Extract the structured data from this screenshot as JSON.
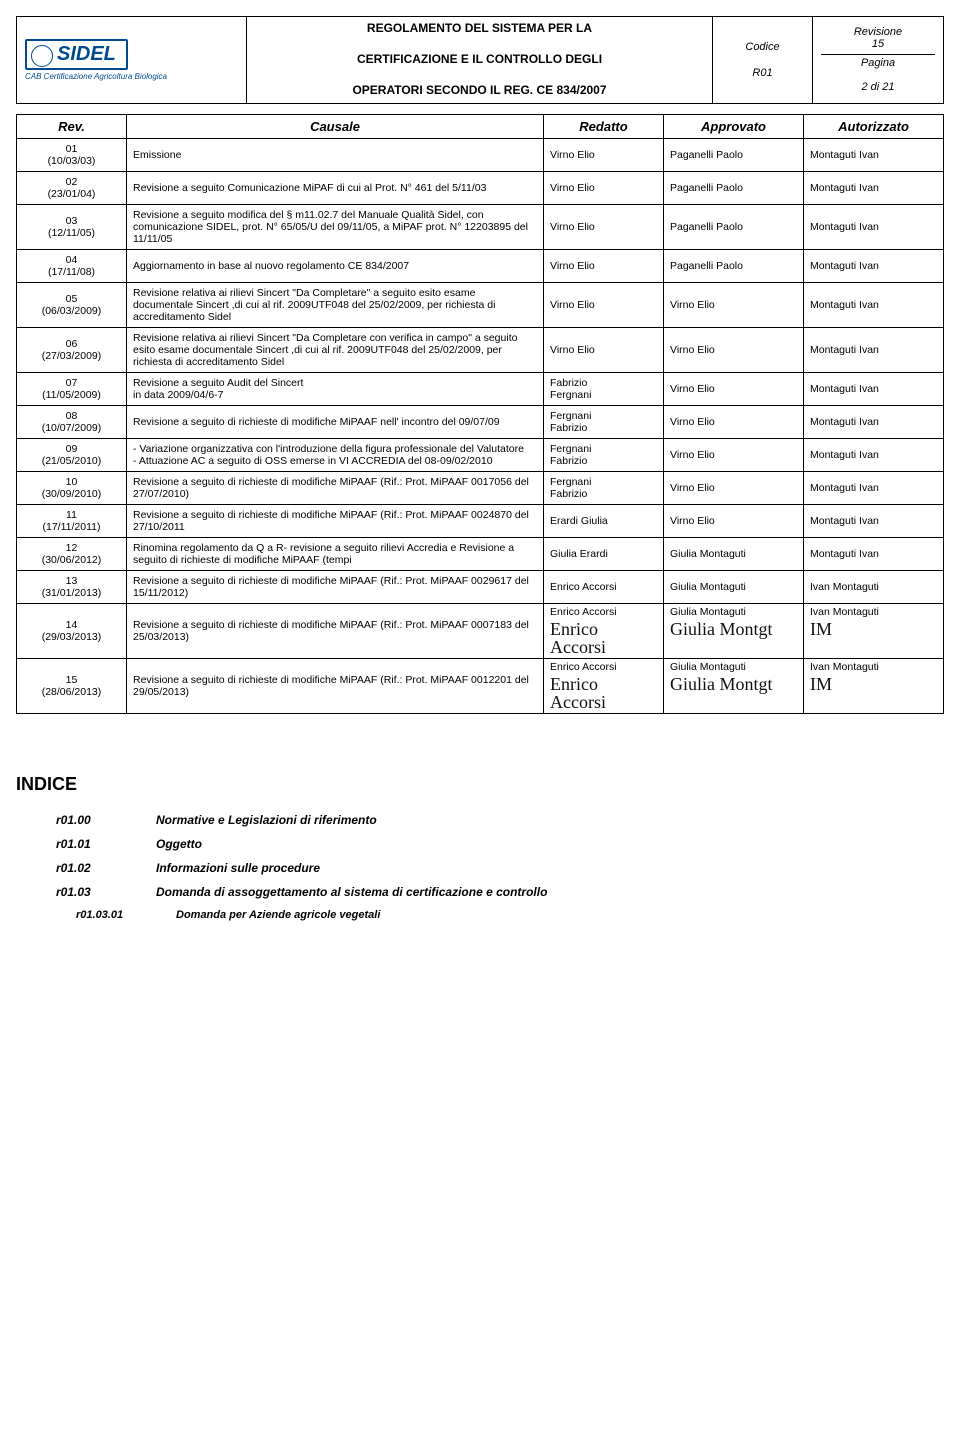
{
  "header": {
    "logo_text": "SIDEL",
    "logo_sub": "CAB Certificazione Agricoltura Biologica",
    "title_line1": "REGOLAMENTO DEL SISTEMA PER LA",
    "title_line2": "CERTIFICAZIONE E IL CONTROLLO DEGLI",
    "title_line3": "OPERATORI SECONDO IL REG. CE 834/2007",
    "codice_label": "Codice",
    "codice_value": "R01",
    "revisione_label": "Revisione",
    "revisione_value": "15",
    "pagina_label": "Pagina",
    "pagina_value": "2 di 21"
  },
  "table": {
    "headers": {
      "rev": "Rev.",
      "causale": "Causale",
      "redatto": "Redatto",
      "approvato": "Approvato",
      "autorizzato": "Autorizzato"
    },
    "rows": [
      {
        "rev": "01\n(10/03/03)",
        "causale": "Emissione",
        "redatto": "Virno Elio",
        "approvato": "Paganelli Paolo",
        "autorizzato": "Montaguti Ivan"
      },
      {
        "rev": "02\n(23/01/04)",
        "causale": "Revisione a seguito Comunicazione MiPAF di cui al Prot. N° 461 del 5/11/03",
        "redatto": "Virno Elio",
        "approvato": "Paganelli Paolo",
        "autorizzato": "Montaguti Ivan"
      },
      {
        "rev": "03\n(12/11/05)",
        "causale": "Revisione a seguito modifica del § m11.02.7 del Manuale Qualità Sidel, con comunicazione SIDEL, prot. N° 65/05/U del 09/11/05,  a MiPAF prot. N° 12203895 del 11/11/05",
        "redatto": "Virno Elio",
        "approvato": "Paganelli Paolo",
        "autorizzato": "Montaguti Ivan"
      },
      {
        "rev": "04\n(17/11/08)",
        "causale": "Aggiornamento in base al nuovo regolamento CE 834/2007",
        "redatto": "Virno Elio",
        "approvato": "Paganelli Paolo",
        "autorizzato": "Montaguti Ivan"
      },
      {
        "rev": "05\n(06/03/2009)",
        "causale": "Revisione relativa ai rilievi Sincert \"Da Completare\" a seguito esito esame documentale  Sincert ,di cui al rif. 2009UTF048 del 25/02/2009, per richiesta di accreditamento Sidel",
        "redatto": "Virno Elio",
        "approvato": "Virno Elio",
        "autorizzato": "Montaguti Ivan"
      },
      {
        "rev": "06\n(27/03/2009)",
        "causale": "Revisione relativa ai rilievi Sincert \"Da Completare con verifica in campo\" a seguito esito esame documentale Sincert ,di cui al rif. 2009UTF048 del 25/02/2009, per richiesta di accreditamento Sidel",
        "redatto": "Virno Elio",
        "approvato": "Virno Elio",
        "autorizzato": "Montaguti Ivan"
      },
      {
        "rev": "07\n(11/05/2009)",
        "causale": "Revisione a seguito Audit del Sincert\nin data 2009/04/6-7",
        "redatto": "Fabrizio\nFergnani",
        "approvato": "Virno Elio",
        "autorizzato": "Montaguti Ivan"
      },
      {
        "rev": "08\n(10/07/2009)",
        "causale": "Revisione a seguito di richieste di modifiche MiPAAF nell' incontro del 09/07/09",
        "redatto": "Fergnani\nFabrizio",
        "approvato": "Virno Elio",
        "autorizzato": "Montaguti Ivan"
      },
      {
        "rev": "09\n(21/05/2010)",
        "causale": "- Variazione organizzativa con l'introduzione della figura professionale del Valutatore\n- Attuazione AC a seguito di OSS emerse in VI ACCREDIA del 08-09/02/2010",
        "redatto": "Fergnani\nFabrizio",
        "approvato": "Virno Elio",
        "autorizzato": "Montaguti Ivan"
      },
      {
        "rev": "10\n(30/09/2010)",
        "causale": "Revisione a seguito di richieste di modifiche MiPAAF (Rif.: Prot. MiPAAF 0017056 del 27/07/2010)",
        "redatto": "Fergnani\nFabrizio",
        "approvato": "Virno Elio",
        "autorizzato": "Montaguti Ivan"
      },
      {
        "rev": "11\n(17/11/2011)",
        "causale": "Revisione a seguito di richieste di modifiche MiPAAF (Rif.: Prot. MiPAAF 0024870 del 27/10/2011",
        "redatto": "Erardi Giulia",
        "approvato": "Virno Elio",
        "autorizzato": "Montaguti Ivan"
      },
      {
        "rev": "12\n(30/06/2012)",
        "causale": "Rinomina regolamento da Q a R- revisione a seguito rilievi Accredia e Revisione a seguito di richieste di modifiche MiPAAF (tempi",
        "redatto": "Giulia Erardi",
        "approvato": "Giulia Montaguti",
        "autorizzato": "Montaguti Ivan"
      },
      {
        "rev": "13\n(31/01/2013)",
        "causale": "Revisione a seguito di  richieste di modifiche MiPAAF (Rif.: Prot. MiPAAF 0029617 del 15/11/2012)",
        "redatto": "Enrico Accorsi",
        "approvato": "Giulia Montaguti",
        "autorizzato": "Ivan Montaguti"
      },
      {
        "rev": "14\n(29/03/2013)",
        "causale": "Revisione a seguito di  richieste di modifiche MiPAAF (Rif.: Prot. MiPAAF 0007183 del 25/03/2013)",
        "redatto": "Enrico Accorsi",
        "approvato": "Giulia Montaguti",
        "autorizzato": "Ivan Montaguti",
        "sig_red": "Enrico Accorsi",
        "sig_app": "Giulia Montgt",
        "sig_aut": "IM"
      },
      {
        "rev": "15\n(28/06/2013)",
        "causale": "Revisione a seguito di  richieste di modifiche MiPAAF (Rif.: Prot. MiPAAF 0012201 del 29/05/2013)",
        "redatto": "Enrico Accorsi",
        "approvato": "Giulia Montaguti",
        "autorizzato": "Ivan Montaguti",
        "sig_red": "Enrico Accorsi",
        "sig_app": "Giulia Montgt",
        "sig_aut": "IM"
      }
    ]
  },
  "indice": {
    "heading": "INDICE",
    "items": [
      {
        "code": "r01.00",
        "label": "Normative e Legislazioni di riferimento"
      },
      {
        "code": "r01.01",
        "label": "Oggetto"
      },
      {
        "code": "r01.02",
        "label": "Informazioni sulle procedure"
      },
      {
        "code": "r01.03",
        "label": "Domanda  di assoggettamento al sistema di certificazione e controllo"
      }
    ],
    "subitems": [
      {
        "code": "r01.03.01",
        "label": "Domanda per Aziende agricole vegetali"
      }
    ]
  }
}
